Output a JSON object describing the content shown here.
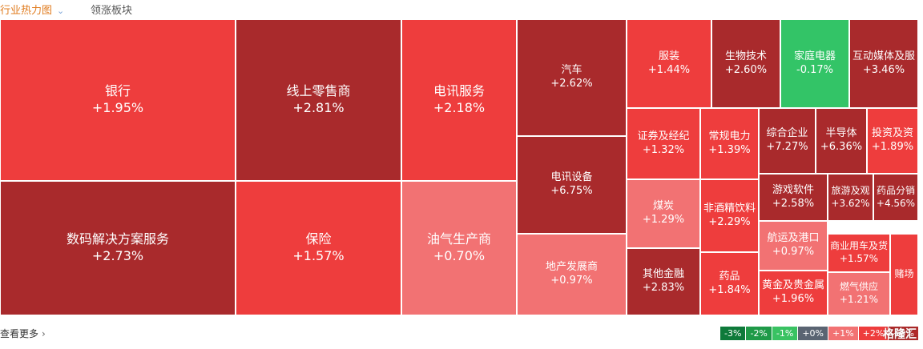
{
  "tabs": {
    "active_label": "行业热力图",
    "chevron_icon": "chevron-down-icon",
    "other_label": "领涨板块"
  },
  "footer": {
    "more_label": "查看更多",
    "more_icon": "chevron-right-icon",
    "brand": "格隆汇"
  },
  "legend": [
    {
      "label": "-3%",
      "color": "#0e7a3a"
    },
    {
      "label": "-2%",
      "color": "#1f9a48"
    },
    {
      "label": "-1%",
      "color": "#39c262"
    },
    {
      "label": "+0%",
      "color": "#5a6472"
    },
    {
      "label": "+1%",
      "color": "#f27273"
    },
    {
      "label": "+2%",
      "color": "#ee3d3d"
    },
    {
      "label": "+3%",
      "color": "#b12b2b"
    }
  ],
  "chart_data": {
    "type": "heatmap",
    "title": "行业热力图",
    "cells": [
      {
        "name": "银行",
        "change": "+1.95%",
        "value": 1.95
      },
      {
        "name": "数码解决方案服务",
        "change": "+2.73%",
        "value": 2.73
      },
      {
        "name": "线上零售商",
        "change": "+2.81%",
        "value": 2.81
      },
      {
        "name": "保险",
        "change": "+1.57%",
        "value": 1.57
      },
      {
        "name": "电讯服务",
        "change": "+2.18%",
        "value": 2.18
      },
      {
        "name": "油气生产商",
        "change": "+0.70%",
        "value": 0.7
      },
      {
        "name": "汽车",
        "change": "+2.62%",
        "value": 2.62
      },
      {
        "name": "电讯设备",
        "change": "+6.75%",
        "value": 6.75
      },
      {
        "name": "地产发展商",
        "change": "+0.97%",
        "value": 0.97
      },
      {
        "name": "服装",
        "change": "+1.44%",
        "value": 1.44
      },
      {
        "name": "生物技术",
        "change": "+2.60%",
        "value": 2.6
      },
      {
        "name": "家庭电器",
        "change": "-0.17%",
        "value": -0.17
      },
      {
        "name": "互动媒体及服",
        "change": "+3.46%",
        "value": 3.46
      },
      {
        "name": "证券及经纪",
        "change": "+1.32%",
        "value": 1.32
      },
      {
        "name": "常规电力",
        "change": "+1.39%",
        "value": 1.39
      },
      {
        "name": "综合企业",
        "change": "+7.27%",
        "value": 7.27
      },
      {
        "name": "半导体",
        "change": "+6.36%",
        "value": 6.36
      },
      {
        "name": "投资及资",
        "change": "+1.89%",
        "value": 1.89
      },
      {
        "name": "煤炭",
        "change": "+1.29%",
        "value": 1.29
      },
      {
        "name": "非酒精饮料",
        "change": "+2.29%",
        "value": 2.29
      },
      {
        "name": "游戏软件",
        "change": "+2.58%",
        "value": 2.58
      },
      {
        "name": "旅游及观",
        "change": "+3.62%",
        "value": 3.62
      },
      {
        "name": "药品分销",
        "change": "+4.56%",
        "value": 4.56
      },
      {
        "name": "航运及港口",
        "change": "+0.97%",
        "value": 0.97
      },
      {
        "name": "商业用车及货",
        "change": "+1.57%",
        "value": 1.57
      },
      {
        "name": "其他金融",
        "change": "+2.83%",
        "value": 2.83
      },
      {
        "name": "药品",
        "change": "+1.84%",
        "value": 1.84
      },
      {
        "name": "黄金及贵金属",
        "change": "+1.96%",
        "value": 1.96
      },
      {
        "name": "燃气供应",
        "change": "+1.21%",
        "value": 1.21
      },
      {
        "name": "赌场",
        "change": "",
        "value": null
      }
    ]
  }
}
